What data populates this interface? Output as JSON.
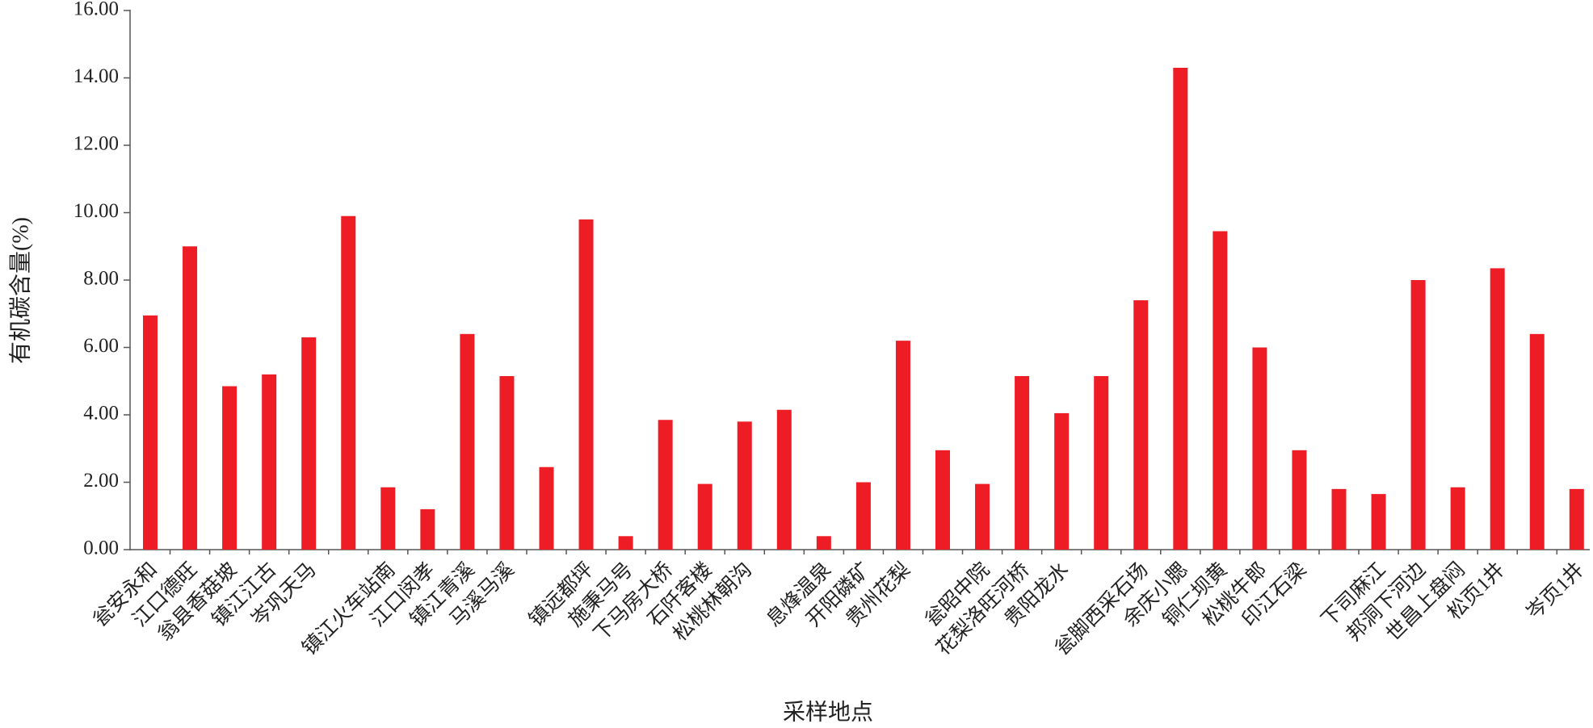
{
  "chart_data": {
    "type": "bar",
    "xlabel": "采样地点",
    "ylabel": "有机碳含量(%)",
    "categories": [
      "瓮安永和",
      "江口德旺",
      "翁县香菇坡",
      "镇江江古",
      "岑巩天马",
      null,
      "镇江火车站南",
      "江口闵孝",
      "镇江青溪",
      "马溪马溪",
      null,
      "镇远都坪",
      "施秉马号",
      "下马房大桥",
      "石阡客楼",
      "松桃林朝沟",
      null,
      "息烽温泉",
      "开阳磷矿",
      "贵州花梨",
      null,
      "瓮昭中院",
      "花梨洛旺河桥",
      "贵阳龙水",
      null,
      "瓮脚西采石场",
      "余庆小腮",
      "铜仁坝黄",
      "松桃牛郎",
      "印江石梁",
      null,
      "下司麻江",
      "邦洞下河边",
      "世昌上盘闷",
      "松页1井",
      null,
      "岑页1井"
    ],
    "values": [
      6.95,
      9.0,
      4.85,
      5.2,
      6.3,
      9.9,
      1.85,
      1.2,
      6.4,
      5.15,
      2.45,
      9.8,
      0.4,
      3.85,
      1.95,
      3.8,
      4.15,
      0.4,
      2.0,
      6.2,
      2.95,
      1.95,
      5.15,
      4.05,
      5.15,
      7.4,
      14.3,
      9.45,
      6.0,
      2.95,
      1.8,
      1.65,
      8.0,
      1.85,
      8.35,
      6.4,
      1.8
    ],
    "color": "#ee1c25",
    "ylim": [
      0,
      16
    ],
    "yticks": [
      {
        "value": 0,
        "label": "0.00"
      },
      {
        "value": 2,
        "label": "2.00"
      },
      {
        "value": 4,
        "label": "4.00"
      },
      {
        "value": 6,
        "label": "6.00"
      },
      {
        "value": 8,
        "label": "8.00"
      },
      {
        "value": 10,
        "label": "10.00"
      },
      {
        "value": 12,
        "label": "12.00"
      },
      {
        "value": 14,
        "label": "14.00"
      },
      {
        "value": 16,
        "label": "16.00"
      }
    ],
    "grid": false
  }
}
